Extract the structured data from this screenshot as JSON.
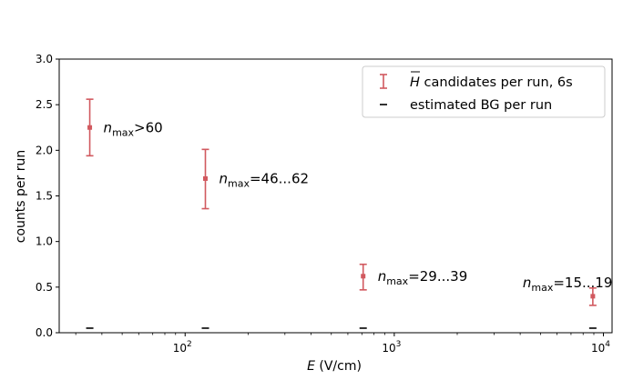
{
  "chart_data": {
    "type": "scatter",
    "xlabel_var": "E",
    "xlabel_unit": "(V/cm)",
    "ylabel": "counts per run",
    "xscale": "log",
    "xlim": [
      25,
      11000
    ],
    "ylim": [
      0,
      3.0
    ],
    "yticks": [
      "0.0",
      "0.5",
      "1.0",
      "1.5",
      "2.0",
      "2.5",
      "3.0"
    ],
    "xticks": [
      {
        "value": 100,
        "base": "10",
        "exp": "2"
      },
      {
        "value": 1000,
        "base": "10",
        "exp": "3"
      },
      {
        "value": 10000,
        "base": "10",
        "exp": "4"
      }
    ],
    "legend_position": "top-right",
    "colors": {
      "candidates": "#d1595f",
      "background": "#000000"
    },
    "series": [
      {
        "name_symbol": "H",
        "name_rest": "candidates per run, 6s",
        "marker": "errorbar",
        "points": [
          {
            "x": 35,
            "y": 2.25,
            "yerr_low": 1.94,
            "yerr_high": 2.56
          },
          {
            "x": 125,
            "y": 1.69,
            "yerr_low": 1.36,
            "yerr_high": 2.01
          },
          {
            "x": 710,
            "y": 0.62,
            "yerr_low": 0.47,
            "yerr_high": 0.75
          },
          {
            "x": 8900,
            "y": 0.4,
            "yerr_low": 0.3,
            "yerr_high": 0.49
          }
        ]
      },
      {
        "name": "estimated BG per run",
        "marker": "dash",
        "points": [
          {
            "x": 35,
            "y": 0.05
          },
          {
            "x": 125,
            "y": 0.05
          },
          {
            "x": 710,
            "y": 0.05
          },
          {
            "x": 8900,
            "y": 0.05
          }
        ]
      }
    ],
    "annotations": [
      {
        "var": "n",
        "sub": "max",
        "rel": ">60"
      },
      {
        "var": "n",
        "sub": "max",
        "rel": "=46...62"
      },
      {
        "var": "n",
        "sub": "max",
        "rel": "=29...39"
      },
      {
        "var": "n",
        "sub": "max",
        "rel": "=15...19"
      }
    ]
  }
}
